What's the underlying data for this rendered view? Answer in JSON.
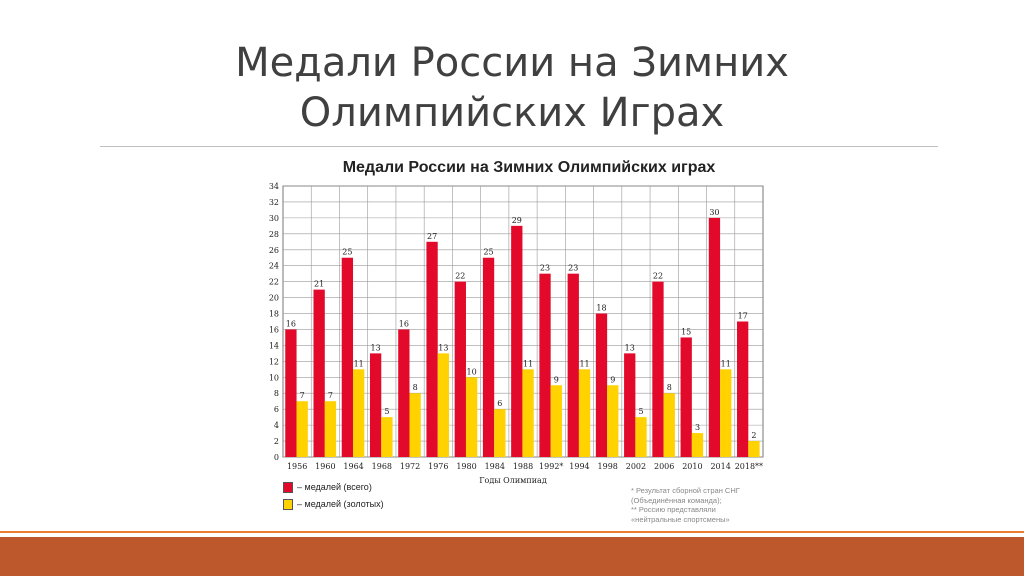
{
  "slide": {
    "title_line1": "Медали России на Зимних",
    "title_line2": "Олимпийских Играх"
  },
  "colors": {
    "total": "#e2092a",
    "gold": "#ffd200",
    "accent": "#ed7d31",
    "band": "#bd582c"
  },
  "chart_data": {
    "type": "bar",
    "title": "Медали России на Зимних Олимпийских играх",
    "xlabel": "Годы Олимпиад",
    "ylabel": "",
    "ylim": [
      0,
      34
    ],
    "yticks": [
      0,
      2,
      4,
      6,
      8,
      10,
      12,
      14,
      16,
      18,
      20,
      22,
      24,
      26,
      28,
      30,
      32,
      34
    ],
    "categories": [
      "1956",
      "1960",
      "1964",
      "1968",
      "1972",
      "1976",
      "1980",
      "1984",
      "1988",
      "1992*",
      "1994",
      "1998",
      "2002",
      "2006",
      "2010",
      "2014",
      "2018**"
    ],
    "series": [
      {
        "name": "– медалей (всего)",
        "values": [
          16,
          21,
          25,
          13,
          16,
          27,
          22,
          25,
          29,
          23,
          23,
          18,
          13,
          22,
          15,
          30,
          17
        ]
      },
      {
        "name": "– медалей (золотых)",
        "values": [
          7,
          7,
          11,
          5,
          8,
          13,
          10,
          6,
          11,
          9,
          11,
          9,
          5,
          8,
          3,
          11,
          2
        ]
      }
    ],
    "grid": true,
    "legend": "bottom-left",
    "note": "* Результат сборной стран СНГ\n(Объединённая команда);\n** Россию представляли\n«нейтральные спортсмены»"
  }
}
